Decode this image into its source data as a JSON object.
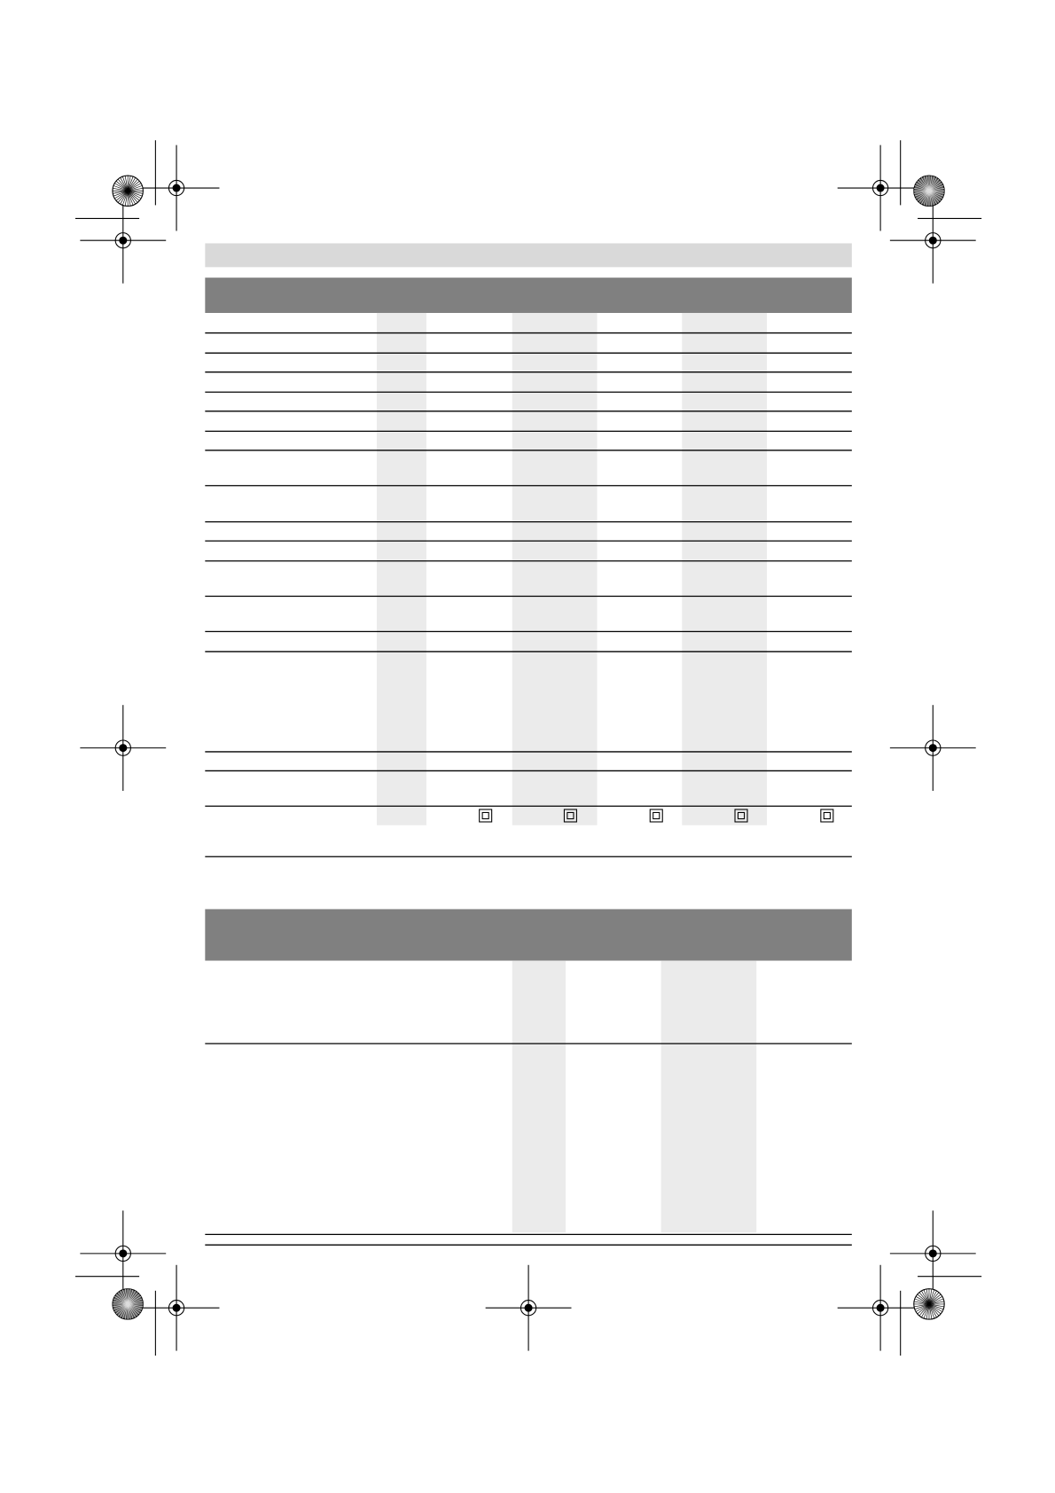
{
  "page": {
    "colors": {
      "title_bar": "#d9d9d9",
      "table_header": "#808080",
      "column_shading": "#ebebeb",
      "rule": "#000000"
    },
    "table1": {
      "rows": 17,
      "shaded_columns": 3,
      "last_row_icons": [
        "protection-class-ii-icon",
        "protection-class-ii-icon",
        "protection-class-ii-icon",
        "protection-class-ii-icon",
        "protection-class-ii-icon"
      ]
    },
    "table2": {
      "rows": 2,
      "shaded_columns": 2
    },
    "print_marks": {
      "registration_mark_icon": "registration-crosshair-icon",
      "color_bar_icon": "starburst-target-icon"
    }
  }
}
